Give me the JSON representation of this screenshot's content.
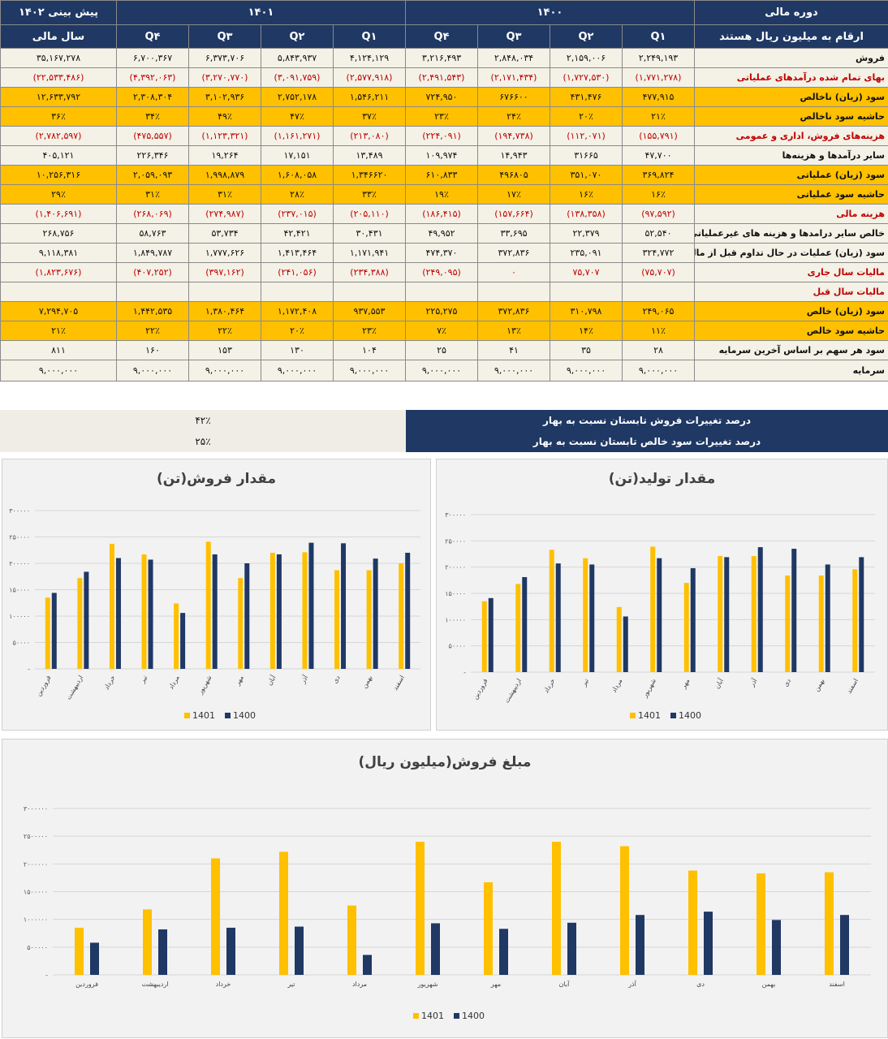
{
  "table": {
    "header": {
      "period_label": "دوره مالی",
      "units_label": "ارقام به میلیون ریال هستند",
      "year_1400": "۱۴۰۰",
      "year_1401": "۱۴۰۱",
      "forecast_label": "پیش بینی ۱۴۰۲",
      "fiscal_year_label": "سال مالی",
      "q1_1400": "Q۱",
      "q2_1400": "Q۲",
      "q3_1400": "Q۳",
      "q4_1400": "Q۴",
      "q1_1401": "Q۱",
      "q2_1401": "Q۲",
      "q3_1401": "Q۳",
      "q4_1401": "Q۴"
    },
    "rows": [
      {
        "label": "فروش",
        "type": "normal",
        "values": [
          "۲,۲۴۹,۱۹۳",
          "۲,۱۵۹,۰۰۶",
          "۲,۸۴۸,۰۳۴",
          "۳,۲۱۶,۴۹۳",
          "۴,۱۲۴,۱۲۹",
          "۵,۸۴۳,۹۳۷",
          "۶,۳۷۳,۷۰۶",
          "۶,۷۰۰,۳۶۷",
          "۳۵,۱۶۷,۲۷۸"
        ]
      },
      {
        "label": "بهای تمام شده درآمدهای عملیاتی",
        "type": "neg",
        "values": [
          "(۱,۷۷۱,۲۷۸)",
          "(۱,۷۲۷,۵۳۰)",
          "(۲,۱۷۱,۴۳۴)",
          "(۲,۴۹۱,۵۴۳)",
          "(۲,۵۷۷,۹۱۸)",
          "(۳,۰۹۱,۷۵۹)",
          "(۳,۲۷۰,۷۷۰)",
          "(۴,۳۹۲,۰۶۳)",
          "(۲۲,۵۳۳,۴۸۶)"
        ]
      },
      {
        "label": "سود (زیان) ناخالص",
        "type": "hl",
        "values": [
          "۴۷۷,۹۱۵",
          "۴۳۱,۴۷۶",
          "۶۷۶۶۰۰",
          "۷۲۴,۹۵۰",
          "۱,۵۴۶,۲۱۱",
          "۲,۷۵۲,۱۷۸",
          "۳,۱۰۲,۹۳۶",
          "۲,۳۰۸,۳۰۴",
          "۱۲,۶۳۳,۷۹۲"
        ]
      },
      {
        "label": "حاشیه سود ناخالص",
        "type": "hl",
        "values": [
          "۲۱٪",
          "۲۰٪",
          "۲۴٪",
          "۲۳٪",
          "۳۷٪",
          "۴۷٪",
          "۴۹٪",
          "۳۴٪",
          "۳۶٪"
        ]
      },
      {
        "label": "هزینه‌های فروش، اداری و عمومی",
        "type": "neg",
        "values": [
          "(۱۵۵,۷۹۱)",
          "(۱۱۲,۰۷۱)",
          "(۱۹۴,۷۳۸)",
          "(۲۲۴,۰۹۱)",
          "(۲۱۳,۰۸۰)",
          "(۱,۱۶۱,۲۷۱)",
          "(۱,۱۲۳,۳۲۱)",
          "(۴۷۵,۵۵۷)",
          "(۲,۷۸۲,۵۹۷)"
        ]
      },
      {
        "label": "سایر درآمدها و هزینه‌ها",
        "type": "normal",
        "values": [
          "۴۷,۷۰۰",
          "۳۱۶۶۵",
          "۱۴,۹۴۳",
          "۱۰۹,۹۷۴",
          "۱۳,۴۸۹",
          "۱۷,۱۵۱",
          "۱۹,۲۶۴",
          "۲۲۶,۳۴۶",
          "۴۰۵,۱۲۱"
        ]
      },
      {
        "label": "سود (زیان) عملیاتی",
        "type": "hl",
        "values": [
          "۳۶۹,۸۲۴",
          "۳۵۱,۰۷۰",
          "۴۹۶۸۰۵",
          "۶۱۰,۸۳۳",
          "۱,۳۴۶۶۲۰",
          "۱,۶۰۸,۰۵۸",
          "۱,۹۹۸,۸۷۹",
          "۲,۰۵۹,۰۹۳",
          "۱۰,۲۵۶,۳۱۶"
        ]
      },
      {
        "label": "حاشیه سود عملیاتی",
        "type": "hl",
        "values": [
          "۱۶٪",
          "۱۶٪",
          "۱۷٪",
          "۱۹٪",
          "۳۳٪",
          "۲۸٪",
          "۳۱٪",
          "۳۱٪",
          "۲۹٪"
        ]
      },
      {
        "label": "هزینه مالی",
        "type": "neg",
        "values": [
          "(۹۷,۵۹۲)",
          "(۱۳۸,۳۵۸)",
          "(۱۵۷,۶۶۴)",
          "(۱۸۶,۴۱۵)",
          "(۲۰۵,۱۱۰)",
          "(۲۳۷,۰۱۵)",
          "(۲۷۴,۹۸۷)",
          "(۲۶۸,۰۶۹)",
          "(۱,۴۰۶,۶۹۱)"
        ]
      },
      {
        "label": "خالص سایر درامدها و هزینه های غیرعملیاتی",
        "type": "normal",
        "values": [
          "۵۲,۵۴۰",
          "۲۲,۳۷۹",
          "۳۳,۶۹۵",
          "۴۹,۹۵۲",
          "۳۰,۴۳۱",
          "۴۲,۴۲۱",
          "۵۳,۷۳۴",
          "۵۸,۷۶۳",
          "۲۶۸,۷۵۶"
        ]
      },
      {
        "label": "سود (زیان) عملیات در حال تداوم قبل از مالیات",
        "type": "normal",
        "values": [
          "۳۲۴,۷۷۲",
          "۲۳۵,۰۹۱",
          "۳۷۲,۸۳۶",
          "۴۷۴,۳۷۰",
          "۱,۱۷۱,۹۴۱",
          "۱,۴۱۳,۴۶۴",
          "۱,۷۷۷,۶۲۶",
          "۱,۸۴۹,۷۸۷",
          "۹,۱۱۸,۳۸۱"
        ]
      },
      {
        "label": "مالیات سال جاری",
        "type": "neg",
        "values": [
          "(۷۵,۷۰۷)",
          "۷۵,۷۰۷",
          "۰",
          "(۲۴۹,۰۹۵)",
          "(۲۳۴,۳۸۸)",
          "(۲۴۱,۰۵۶)",
          "(۳۹۷,۱۶۲)",
          "(۴۰۷,۲۵۲)",
          "(۱,۸۲۳,۶۷۶)"
        ]
      },
      {
        "label": "مالیات سال قبل",
        "type": "neg",
        "values": [
          "",
          "",
          "",
          "",
          "",
          "",
          "",
          "",
          ""
        ]
      },
      {
        "label": "سود (زیان) خالص",
        "type": "hl",
        "values": [
          "۲۴۹,۰۶۵",
          "۳۱۰,۷۹۸",
          "۳۷۲,۸۳۶",
          "۲۲۵,۲۷۵",
          "۹۳۷,۵۵۳",
          "۱,۱۷۲,۴۰۸",
          "۱,۳۸۰,۴۶۴",
          "۱,۴۴۲,۵۳۵",
          "۷,۲۹۴,۷۰۵"
        ]
      },
      {
        "label": "حاشیه سود خالص",
        "type": "hl",
        "values": [
          "۱۱٪",
          "۱۴٪",
          "۱۳٪",
          "۷٪",
          "۲۳٪",
          "۲۰٪",
          "۲۲٪",
          "۲۲٪",
          "۲۱٪"
        ]
      },
      {
        "label": "سود هر سهم بر اساس آخرین سرمایه",
        "type": "normal",
        "values": [
          "۲۸",
          "۳۵",
          "۴۱",
          "۲۵",
          "۱۰۴",
          "۱۳۰",
          "۱۵۳",
          "۱۶۰",
          "۸۱۱"
        ]
      },
      {
        "label": "سرمایه",
        "type": "last",
        "values": [
          "۹,۰۰۰,۰۰۰",
          "۹,۰۰۰,۰۰۰",
          "۹,۰۰۰,۰۰۰",
          "۹,۰۰۰,۰۰۰",
          "۹,۰۰۰,۰۰۰",
          "۹,۰۰۰,۰۰۰",
          "۹,۰۰۰,۰۰۰",
          "۹,۰۰۰,۰۰۰",
          "۹,۰۰۰,۰۰۰"
        ]
      }
    ]
  },
  "summary": {
    "sales_change_label": "درصد تغییرات فروش تابستان نسبت به بهار",
    "sales_change_value": "۴۲٪",
    "profit_change_label": "درصد تغییرات سود خالص تابستان نسبت به بهار",
    "profit_change_value": "۲۵٪"
  },
  "colors": {
    "series_1401": "#ffc000",
    "series_1400": "#1f3864",
    "header_bg": "#1f3864",
    "highlight": "#ffc000",
    "negative": "#c00000"
  },
  "chart_data": [
    {
      "type": "bar",
      "title": "مقدار فروش(تن)",
      "categories": [
        "فروردین",
        "اردیبهشت",
        "خرداد",
        "تیر",
        "مرداد",
        "شهریور",
        "مهر",
        "آبان",
        "آذر",
        "دی",
        "بهمن",
        "اسفند"
      ],
      "tick_labels": [
        "-",
        "۵۰۰۰۰",
        "۱۰۰۰۰۰",
        "۱۵۰۰۰۰",
        "۲۰۰۰۰۰",
        "۲۵۰۰۰۰",
        "۳۰۰۰۰۰"
      ],
      "ylim": [
        0,
        300000
      ],
      "legend": "bottom",
      "series": [
        {
          "name": "1401",
          "values": [
            135000,
            172000,
            237000,
            217000,
            124000,
            241000,
            172000,
            220000,
            221000,
            187000,
            187000,
            200000
          ]
        },
        {
          "name": "1400",
          "values": [
            144000,
            184000,
            210000,
            207000,
            106000,
            217000,
            200000,
            217000,
            239000,
            238000,
            209000,
            220000
          ]
        }
      ]
    },
    {
      "type": "bar",
      "title": "مقدار تولید(تن)",
      "categories": [
        "فروردین",
        "اردیبهشت",
        "خرداد",
        "تیر",
        "مرداد",
        "شهریور",
        "مهر",
        "آبان",
        "آذر",
        "دی",
        "بهمن",
        "اسفند"
      ],
      "tick_labels": [
        "-",
        "۵۰۰۰۰",
        "۱۰۰۰۰۰",
        "۱۵۰۰۰۰",
        "۲۰۰۰۰۰",
        "۲۵۰۰۰۰",
        "۳۰۰۰۰۰"
      ],
      "ylim": [
        0,
        300000
      ],
      "legend": "bottom",
      "series": [
        {
          "name": "1401",
          "values": [
            135000,
            168000,
            233000,
            217000,
            124000,
            239000,
            170000,
            221000,
            221000,
            184000,
            184000,
            196000
          ]
        },
        {
          "name": "1400",
          "values": [
            141000,
            181000,
            207000,
            205000,
            106000,
            217000,
            198000,
            219000,
            238000,
            235000,
            205000,
            219000
          ]
        }
      ]
    },
    {
      "type": "bar",
      "title": "مبلغ فروش(میلیون ریال)",
      "categories": [
        "فروردین",
        "اردیبهشت",
        "خرداد",
        "تیر",
        "مرداد",
        "شهریور",
        "مهر",
        "آبان",
        "آذر",
        "دی",
        "بهمن",
        "اسفند"
      ],
      "tick_labels": [
        "-",
        "۵۰۰۰۰۰",
        "۱۰۰۰۰۰۰",
        "۱۵۰۰۰۰۰",
        "۲۰۰۰۰۰۰",
        "۲۵۰۰۰۰۰",
        "۳۰۰۰۰۰۰"
      ],
      "ylim": [
        0,
        3000000
      ],
      "legend": "bottom",
      "series": [
        {
          "name": "1401",
          "values": [
            850000,
            1180000,
            2100000,
            2220000,
            1250000,
            2400000,
            1670000,
            2400000,
            2320000,
            1880000,
            1830000,
            1850000
          ]
        },
        {
          "name": "1400",
          "values": [
            580000,
            820000,
            850000,
            870000,
            360000,
            930000,
            830000,
            940000,
            1080000,
            1140000,
            990000,
            1080000
          ]
        }
      ]
    }
  ]
}
